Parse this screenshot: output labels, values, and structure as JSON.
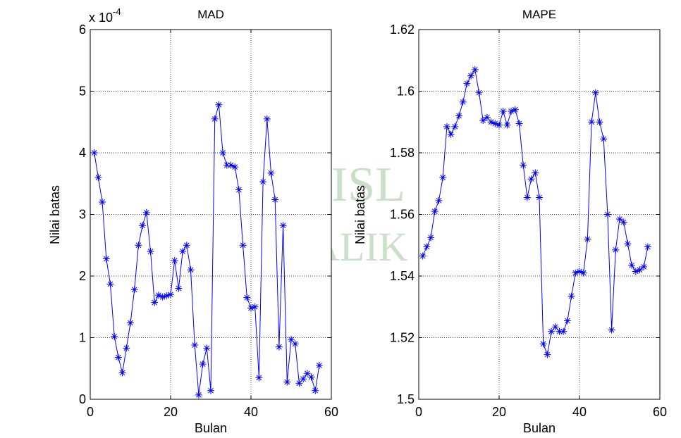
{
  "watermark": {
    "lines": [
      "ISL",
      "ALIK"
    ],
    "color_green": "#d6e8d6",
    "color_yellow": "#f6f3c4"
  },
  "chart_data": [
    {
      "type": "line",
      "title": "MAD",
      "xlabel": "Bulan",
      "ylabel": "Nilai batas",
      "multiplier_label": "x 10",
      "multiplier_exponent": "-4",
      "xlim": [
        0,
        60
      ],
      "ylim": [
        0,
        6
      ],
      "xticks": [
        0,
        20,
        40,
        60
      ],
      "yticks": [
        0,
        1,
        2,
        3,
        4,
        5,
        6
      ],
      "grid": true,
      "marker": "star",
      "color": "#0000ff",
      "x": [
        1,
        2,
        3,
        4,
        5,
        6,
        7,
        8,
        9,
        10,
        11,
        12,
        13,
        14,
        15,
        16,
        17,
        18,
        19,
        20,
        21,
        22,
        23,
        24,
        25,
        26,
        27,
        28,
        29,
        30,
        31,
        32,
        33,
        34,
        35,
        36,
        37,
        38,
        39,
        40,
        41,
        42,
        43,
        44,
        45,
        46,
        47,
        48,
        49,
        50,
        51,
        52,
        53,
        54,
        55,
        56,
        57
      ],
      "values": [
        4.0,
        3.6,
        3.2,
        2.28,
        1.87,
        1.02,
        0.68,
        0.43,
        0.83,
        1.24,
        1.78,
        2.5,
        2.82,
        3.03,
        2.4,
        1.57,
        1.69,
        1.66,
        1.68,
        1.7,
        2.25,
        1.8,
        2.4,
        2.5,
        2.1,
        0.88,
        0.07,
        0.57,
        0.83,
        0.14,
        4.55,
        4.78,
        4.0,
        3.8,
        3.8,
        3.77,
        3.4,
        2.5,
        1.65,
        1.48,
        1.5,
        0.35,
        3.53,
        4.55,
        3.67,
        3.24,
        0.85,
        2.82,
        0.28,
        0.97,
        0.9,
        0.26,
        0.33,
        0.42,
        0.36,
        0.14,
        0.55
      ]
    },
    {
      "type": "line",
      "title": "MAPE",
      "xlabel": "Bulan",
      "ylabel": "Nilai batas",
      "xlim": [
        0,
        60
      ],
      "ylim": [
        1.5,
        1.62
      ],
      "xticks": [
        0,
        20,
        40,
        60
      ],
      "yticks": [
        "1.5",
        "1.52",
        "1.54",
        "1.56",
        "1.58",
        "1.6",
        "1.62"
      ],
      "grid": true,
      "marker": "star",
      "color": "#0000ff",
      "x": [
        1,
        2,
        3,
        4,
        5,
        6,
        7,
        8,
        9,
        10,
        11,
        12,
        13,
        14,
        15,
        16,
        17,
        18,
        19,
        20,
        21,
        22,
        23,
        24,
        25,
        26,
        27,
        28,
        29,
        30,
        31,
        32,
        33,
        34,
        35,
        36,
        37,
        38,
        39,
        40,
        41,
        42,
        43,
        44,
        45,
        46,
        47,
        48,
        49,
        50,
        51,
        52,
        53,
        54,
        55,
        56,
        57
      ],
      "values": [
        1.5465,
        1.5495,
        1.5525,
        1.561,
        1.5645,
        1.572,
        1.5885,
        1.586,
        1.5885,
        1.592,
        1.5965,
        1.6025,
        1.605,
        1.607,
        1.5995,
        1.5905,
        1.5915,
        1.59,
        1.5895,
        1.589,
        1.5935,
        1.589,
        1.5935,
        1.594,
        1.5895,
        1.576,
        1.5655,
        1.5715,
        1.5735,
        1.5655,
        1.518,
        1.5145,
        1.522,
        1.5235,
        1.522,
        1.522,
        1.5255,
        1.5335,
        1.541,
        1.5415,
        1.541,
        1.552,
        1.59,
        1.5995,
        1.59,
        1.5845,
        1.56,
        1.5225,
        1.5485,
        1.5585,
        1.5575,
        1.5505,
        1.5435,
        1.5415,
        1.542,
        1.543,
        1.5495
      ]
    }
  ]
}
